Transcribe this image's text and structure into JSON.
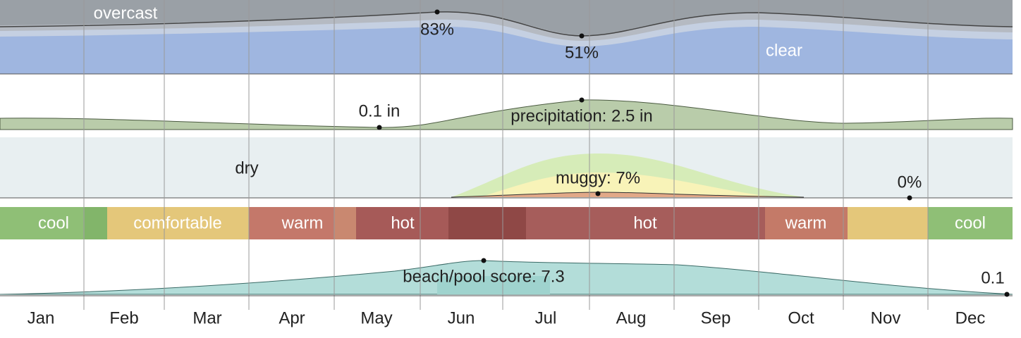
{
  "chart_data": {
    "type": "summary",
    "categories": [
      "Jan",
      "Feb",
      "Mar",
      "Apr",
      "May",
      "Jun",
      "Jul",
      "Aug",
      "Sep",
      "Oct",
      "Nov",
      "Dec"
    ],
    "clouds": {
      "top_label": "overcast",
      "bottom_label": "clear",
      "max_label": "83%",
      "min_label": "51%"
    },
    "precipitation": {
      "min_label": "0.1 in",
      "max_label": "precipitation: 2.5 in"
    },
    "humidity": {
      "dry_label": "dry",
      "max_label": "muggy: 7%",
      "min_label": "0%"
    },
    "temperature_bands": [
      "cool",
      "comfortable",
      "warm",
      "hot",
      "hot",
      "warm",
      "cool"
    ],
    "beach": {
      "max_label": "beach/pool score: 7.3",
      "min_label": "0.1"
    }
  }
}
